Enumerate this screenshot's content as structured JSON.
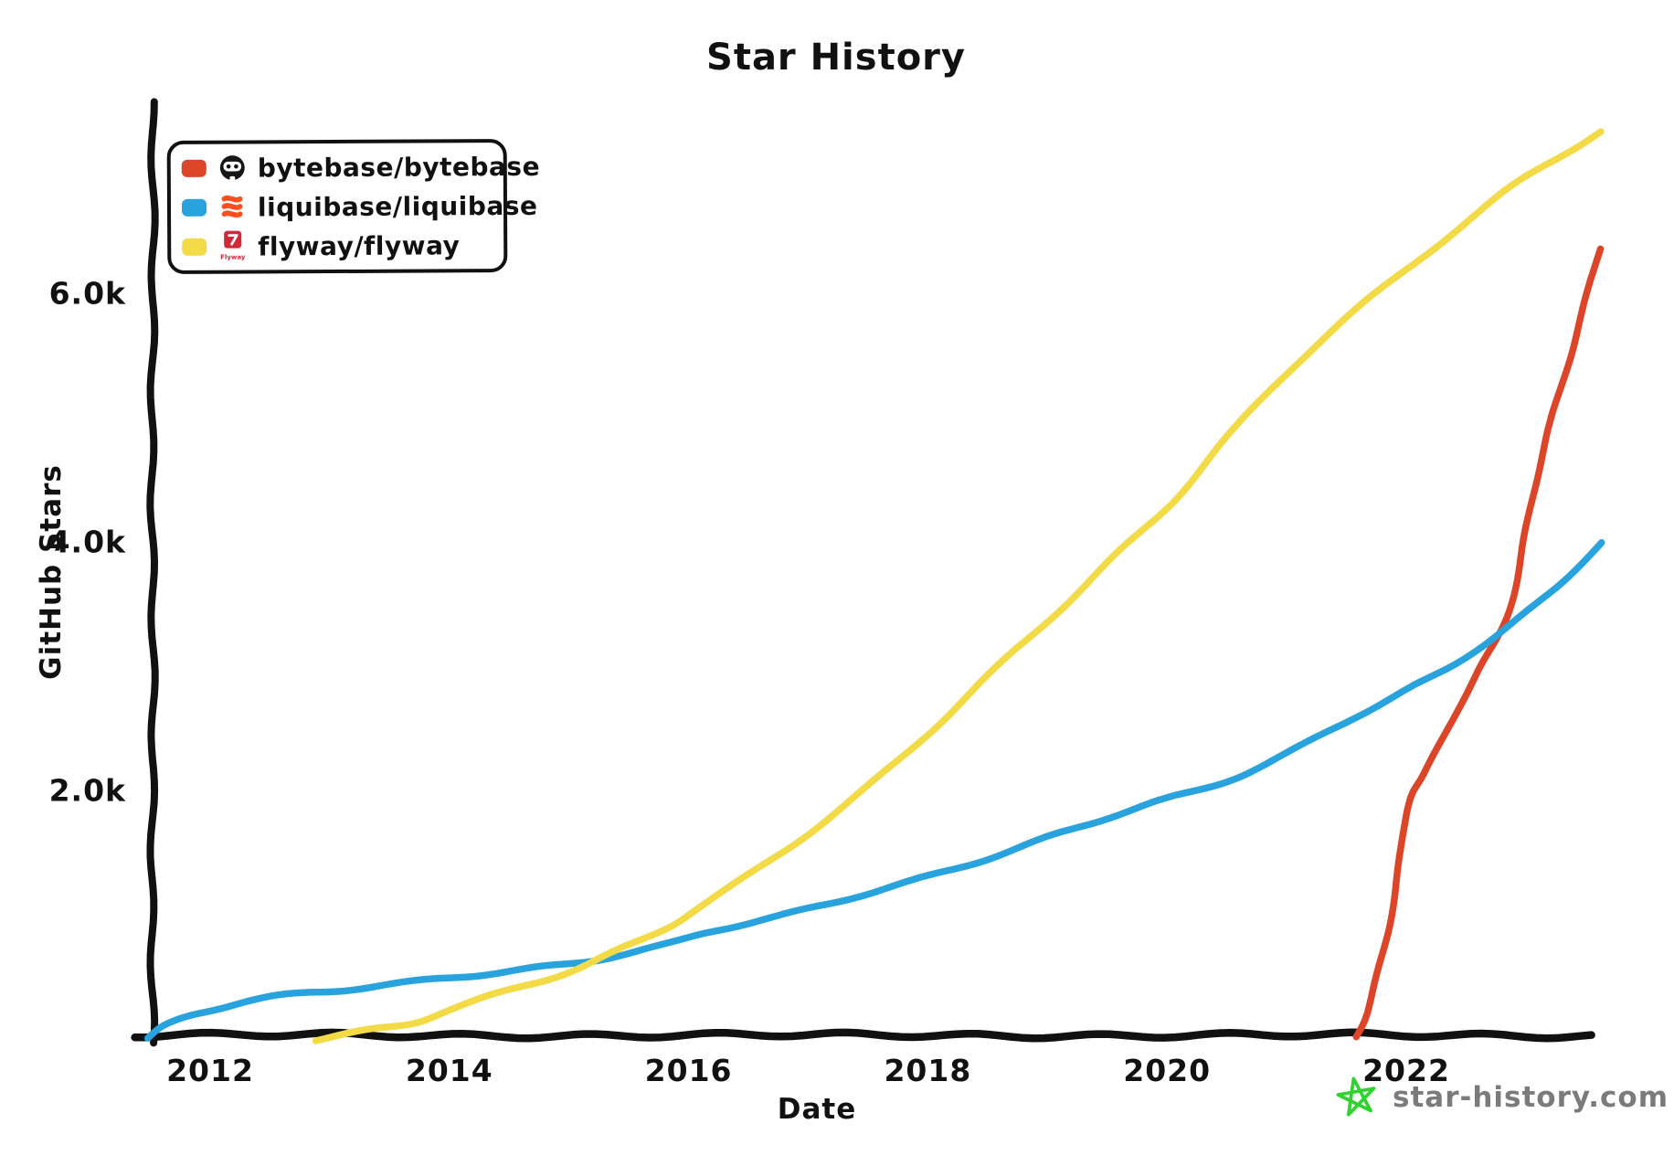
{
  "title": "Star History",
  "watermark": {
    "text": "star-history.com",
    "text_color": "#7b7b7b",
    "star_color": "#2fd22f"
  },
  "legend": [
    {
      "label": "bytebase/bytebase",
      "color": "#dd4528",
      "icon": "bytebase-logo",
      "icon_color": "#161616"
    },
    {
      "label": "liquibase/liquibase",
      "color": "#28a3dd",
      "icon": "liquibase-logo",
      "icon_color": "#ff4f1e"
    },
    {
      "label": "flyway/flyway",
      "color": "#f3db47",
      "icon": "flyway-logo",
      "icon_color": "#d0293a",
      "icon_caption": "Flyway"
    }
  ],
  "chart_data": {
    "type": "line",
    "title": "Star History",
    "xlabel": "Date",
    "ylabel": "GitHub Stars",
    "x_unit": "decimal_year",
    "xlim": [
      2011.45,
      2023.65
    ],
    "ylim": [
      0,
      7500
    ],
    "grid": false,
    "legend_position": "top-left",
    "x_ticks": [
      {
        "label": "2012",
        "value": 2012
      },
      {
        "label": "2014",
        "value": 2014
      },
      {
        "label": "2016",
        "value": 2016
      },
      {
        "label": "2018",
        "value": 2018
      },
      {
        "label": "2020",
        "value": 2020
      },
      {
        "label": "2022",
        "value": 2022
      }
    ],
    "y_ticks": [
      {
        "label": "2.0k",
        "value": 2000
      },
      {
        "label": "4.0k",
        "value": 4000
      },
      {
        "label": "6.0k",
        "value": 6000
      }
    ],
    "series": [
      {
        "name": "bytebase/bytebase",
        "color": "#dd4528",
        "points": [
          [
            2021.58,
            0
          ],
          [
            2021.68,
            200
          ],
          [
            2021.78,
            600
          ],
          [
            2021.9,
            1150
          ],
          [
            2022.0,
            1870
          ],
          [
            2022.15,
            2150
          ],
          [
            2022.35,
            2500
          ],
          [
            2022.6,
            2950
          ],
          [
            2022.85,
            3400
          ],
          [
            2023.0,
            4100
          ],
          [
            2023.15,
            4800
          ],
          [
            2023.35,
            5450
          ],
          [
            2023.5,
            5950
          ],
          [
            2023.62,
            6350
          ]
        ]
      },
      {
        "name": "liquibase/liquibase",
        "color": "#28a3dd",
        "points": [
          [
            2011.48,
            0
          ],
          [
            2011.6,
            100
          ],
          [
            2011.8,
            190
          ],
          [
            2012.0,
            245
          ],
          [
            2012.3,
            310
          ],
          [
            2012.7,
            360
          ],
          [
            2013.1,
            395
          ],
          [
            2013.6,
            440
          ],
          [
            2014.0,
            490
          ],
          [
            2014.6,
            550
          ],
          [
            2015.2,
            640
          ],
          [
            2015.8,
            760
          ],
          [
            2016.2,
            880
          ],
          [
            2016.8,
            1000
          ],
          [
            2017.4,
            1150
          ],
          [
            2018.0,
            1300
          ],
          [
            2018.6,
            1480
          ],
          [
            2019.2,
            1680
          ],
          [
            2019.8,
            1880
          ],
          [
            2020.4,
            2050
          ],
          [
            2021.0,
            2300
          ],
          [
            2021.6,
            2600
          ],
          [
            2022.0,
            2800
          ],
          [
            2022.4,
            3000
          ],
          [
            2022.9,
            3360
          ],
          [
            2023.3,
            3650
          ],
          [
            2023.62,
            4000
          ]
        ]
      },
      {
        "name": "flyway/flyway",
        "color": "#f3db47",
        "points": [
          [
            2012.88,
            0
          ],
          [
            2013.3,
            70
          ],
          [
            2013.7,
            140
          ],
          [
            2014.0,
            240
          ],
          [
            2014.5,
            390
          ],
          [
            2015.0,
            540
          ],
          [
            2015.35,
            680
          ],
          [
            2015.8,
            880
          ],
          [
            2016.1,
            1060
          ],
          [
            2016.5,
            1310
          ],
          [
            2017.0,
            1660
          ],
          [
            2017.5,
            2030
          ],
          [
            2018.0,
            2470
          ],
          [
            2018.5,
            2920
          ],
          [
            2019.0,
            3370
          ],
          [
            2019.5,
            3820
          ],
          [
            2020.0,
            4270
          ],
          [
            2020.5,
            4830
          ],
          [
            2021.0,
            5350
          ],
          [
            2021.5,
            5810
          ],
          [
            2022.0,
            6200
          ],
          [
            2022.5,
            6580
          ],
          [
            2023.0,
            6940
          ],
          [
            2023.62,
            7300
          ]
        ]
      }
    ]
  }
}
